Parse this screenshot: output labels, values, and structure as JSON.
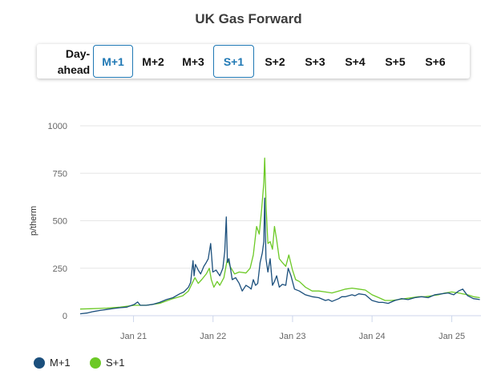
{
  "title": "UK Gas Forward",
  "tabs": [
    {
      "label": "Day-\nahead",
      "selected": false
    },
    {
      "label": "M+1",
      "selected": true
    },
    {
      "label": "M+2",
      "selected": false
    },
    {
      "label": "M+3",
      "selected": false
    },
    {
      "label": "S+1",
      "selected": true
    },
    {
      "label": "S+2",
      "selected": false
    },
    {
      "label": "S+3",
      "selected": false
    },
    {
      "label": "S+4",
      "selected": false
    },
    {
      "label": "S+5",
      "selected": false
    },
    {
      "label": "S+6",
      "selected": false
    }
  ],
  "colors": {
    "m1": "#1b4f7c",
    "s1": "#6cc926",
    "grid": "#e6e6e6",
    "axis": "#ccd6eb",
    "accent": "#1f78b4"
  },
  "chart_data": {
    "type": "line",
    "ylabel": "p/therm",
    "yticks": [
      0,
      250,
      500,
      750,
      1000
    ],
    "ylim": [
      0,
      1000
    ],
    "xlim": [
      "2020-05-01",
      "2025-05-15"
    ],
    "xticks": [
      {
        "date": "2021-01-01",
        "label": "Jan 21"
      },
      {
        "date": "2022-01-01",
        "label": "Jan 22"
      },
      {
        "date": "2023-01-01",
        "label": "Jan 23"
      },
      {
        "date": "2024-01-01",
        "label": "Jan 24"
      },
      {
        "date": "2025-01-01",
        "label": "Jan 25"
      }
    ],
    "grid": true,
    "legend_position": "bottom-left",
    "series": [
      {
        "name": "M+1",
        "color": "#1b4f7c",
        "x": [
          "2020-05-01",
          "2020-06-01",
          "2020-07-01",
          "2020-08-01",
          "2020-09-01",
          "2020-10-01",
          "2020-11-01",
          "2020-12-01",
          "2021-01-05",
          "2021-01-20",
          "2021-02-01",
          "2021-03-01",
          "2021-04-01",
          "2021-05-01",
          "2021-06-01",
          "2021-07-01",
          "2021-08-01",
          "2021-08-20",
          "2021-09-10",
          "2021-09-20",
          "2021-10-01",
          "2021-10-06",
          "2021-10-12",
          "2021-10-25",
          "2021-11-05",
          "2021-11-20",
          "2021-12-01",
          "2021-12-10",
          "2021-12-21",
          "2021-12-31",
          "2022-01-15",
          "2022-02-01",
          "2022-02-15",
          "2022-02-24",
          "2022-03-03",
          "2022-03-08",
          "2022-03-15",
          "2022-03-30",
          "2022-04-15",
          "2022-05-01",
          "2022-05-15",
          "2022-06-01",
          "2022-06-15",
          "2022-06-25",
          "2022-07-05",
          "2022-07-15",
          "2022-07-25",
          "2022-08-05",
          "2022-08-15",
          "2022-08-22",
          "2022-08-26",
          "2022-09-01",
          "2022-09-10",
          "2022-09-20",
          "2022-10-01",
          "2022-10-10",
          "2022-10-20",
          "2022-11-01",
          "2022-11-15",
          "2022-12-01",
          "2022-12-12",
          "2022-12-25",
          "2023-01-10",
          "2023-02-01",
          "2023-03-01",
          "2023-04-01",
          "2023-05-01",
          "2023-06-01",
          "2023-06-15",
          "2023-07-01",
          "2023-08-01",
          "2023-08-15",
          "2023-09-01",
          "2023-10-01",
          "2023-10-15",
          "2023-11-01",
          "2023-12-01",
          "2024-01-01",
          "2024-02-01",
          "2024-02-20",
          "2024-03-15",
          "2024-04-15",
          "2024-05-15",
          "2024-06-15",
          "2024-07-15",
          "2024-08-15",
          "2024-09-15",
          "2024-10-15",
          "2024-11-15",
          "2024-12-15",
          "2025-01-10",
          "2025-02-01",
          "2025-02-20",
          "2025-03-15",
          "2025-04-10",
          "2025-05-10"
        ],
        "y": [
          10,
          14,
          22,
          28,
          33,
          38,
          42,
          45,
          60,
          72,
          55,
          55,
          60,
          70,
          85,
          95,
          115,
          125,
          150,
          175,
          290,
          210,
          270,
          240,
          220,
          260,
          280,
          300,
          380,
          230,
          240,
          210,
          250,
          340,
          520,
          280,
          300,
          190,
          200,
          170,
          130,
          160,
          150,
          140,
          190,
          160,
          170,
          280,
          330,
          390,
          620,
          300,
          230,
          300,
          160,
          180,
          210,
          150,
          165,
          160,
          250,
          210,
          140,
          130,
          110,
          100,
          95,
          80,
          85,
          75,
          90,
          100,
          100,
          110,
          105,
          115,
          110,
          80,
          70,
          70,
          65,
          80,
          90,
          85,
          95,
          100,
          95,
          110,
          115,
          120,
          110,
          130,
          140,
          105,
          90,
          85
        ]
      },
      {
        "name": "S+1",
        "color": "#6cc926",
        "x": [
          "2020-05-01",
          "2020-07-01",
          "2020-09-01",
          "2020-11-01",
          "2021-01-05",
          "2021-03-01",
          "2021-05-01",
          "2021-07-01",
          "2021-08-15",
          "2021-09-10",
          "2021-10-01",
          "2021-10-10",
          "2021-10-25",
          "2021-11-10",
          "2021-12-01",
          "2021-12-15",
          "2021-12-24",
          "2022-01-05",
          "2022-01-20",
          "2022-02-01",
          "2022-02-20",
          "2022-03-08",
          "2022-03-20",
          "2022-04-10",
          "2022-05-01",
          "2022-06-01",
          "2022-06-20",
          "2022-07-05",
          "2022-07-20",
          "2022-08-01",
          "2022-08-12",
          "2022-08-22",
          "2022-08-26",
          "2022-09-02",
          "2022-09-10",
          "2022-09-20",
          "2022-10-01",
          "2022-10-10",
          "2022-10-20",
          "2022-11-01",
          "2022-11-15",
          "2022-12-01",
          "2022-12-15",
          "2023-01-01",
          "2023-01-15",
          "2023-02-01",
          "2023-03-01",
          "2023-04-01",
          "2023-05-01",
          "2023-06-01",
          "2023-07-01",
          "2023-08-01",
          "2023-09-01",
          "2023-10-01",
          "2023-11-01",
          "2023-12-01",
          "2024-01-01",
          "2024-02-01",
          "2024-03-01",
          "2024-04-01",
          "2024-05-01",
          "2024-06-01",
          "2024-07-01",
          "2024-08-01",
          "2024-09-01",
          "2024-10-01",
          "2024-11-01",
          "2024-12-01",
          "2025-01-01",
          "2025-02-01",
          "2025-02-20",
          "2025-03-15",
          "2025-04-10",
          "2025-05-10"
        ],
        "y": [
          35,
          37,
          40,
          45,
          55,
          55,
          65,
          90,
          105,
          130,
          180,
          200,
          170,
          190,
          220,
          250,
          190,
          150,
          180,
          160,
          200,
          300,
          260,
          220,
          230,
          225,
          250,
          320,
          470,
          430,
          560,
          700,
          830,
          560,
          380,
          390,
          350,
          470,
          400,
          300,
          280,
          260,
          320,
          240,
          190,
          180,
          150,
          130,
          130,
          125,
          120,
          130,
          140,
          145,
          140,
          135,
          110,
          95,
          80,
          80,
          85,
          90,
          95,
          100,
          100,
          105,
          110,
          120,
          125,
          120,
          115,
          110,
          100,
          95
        ]
      }
    ]
  }
}
